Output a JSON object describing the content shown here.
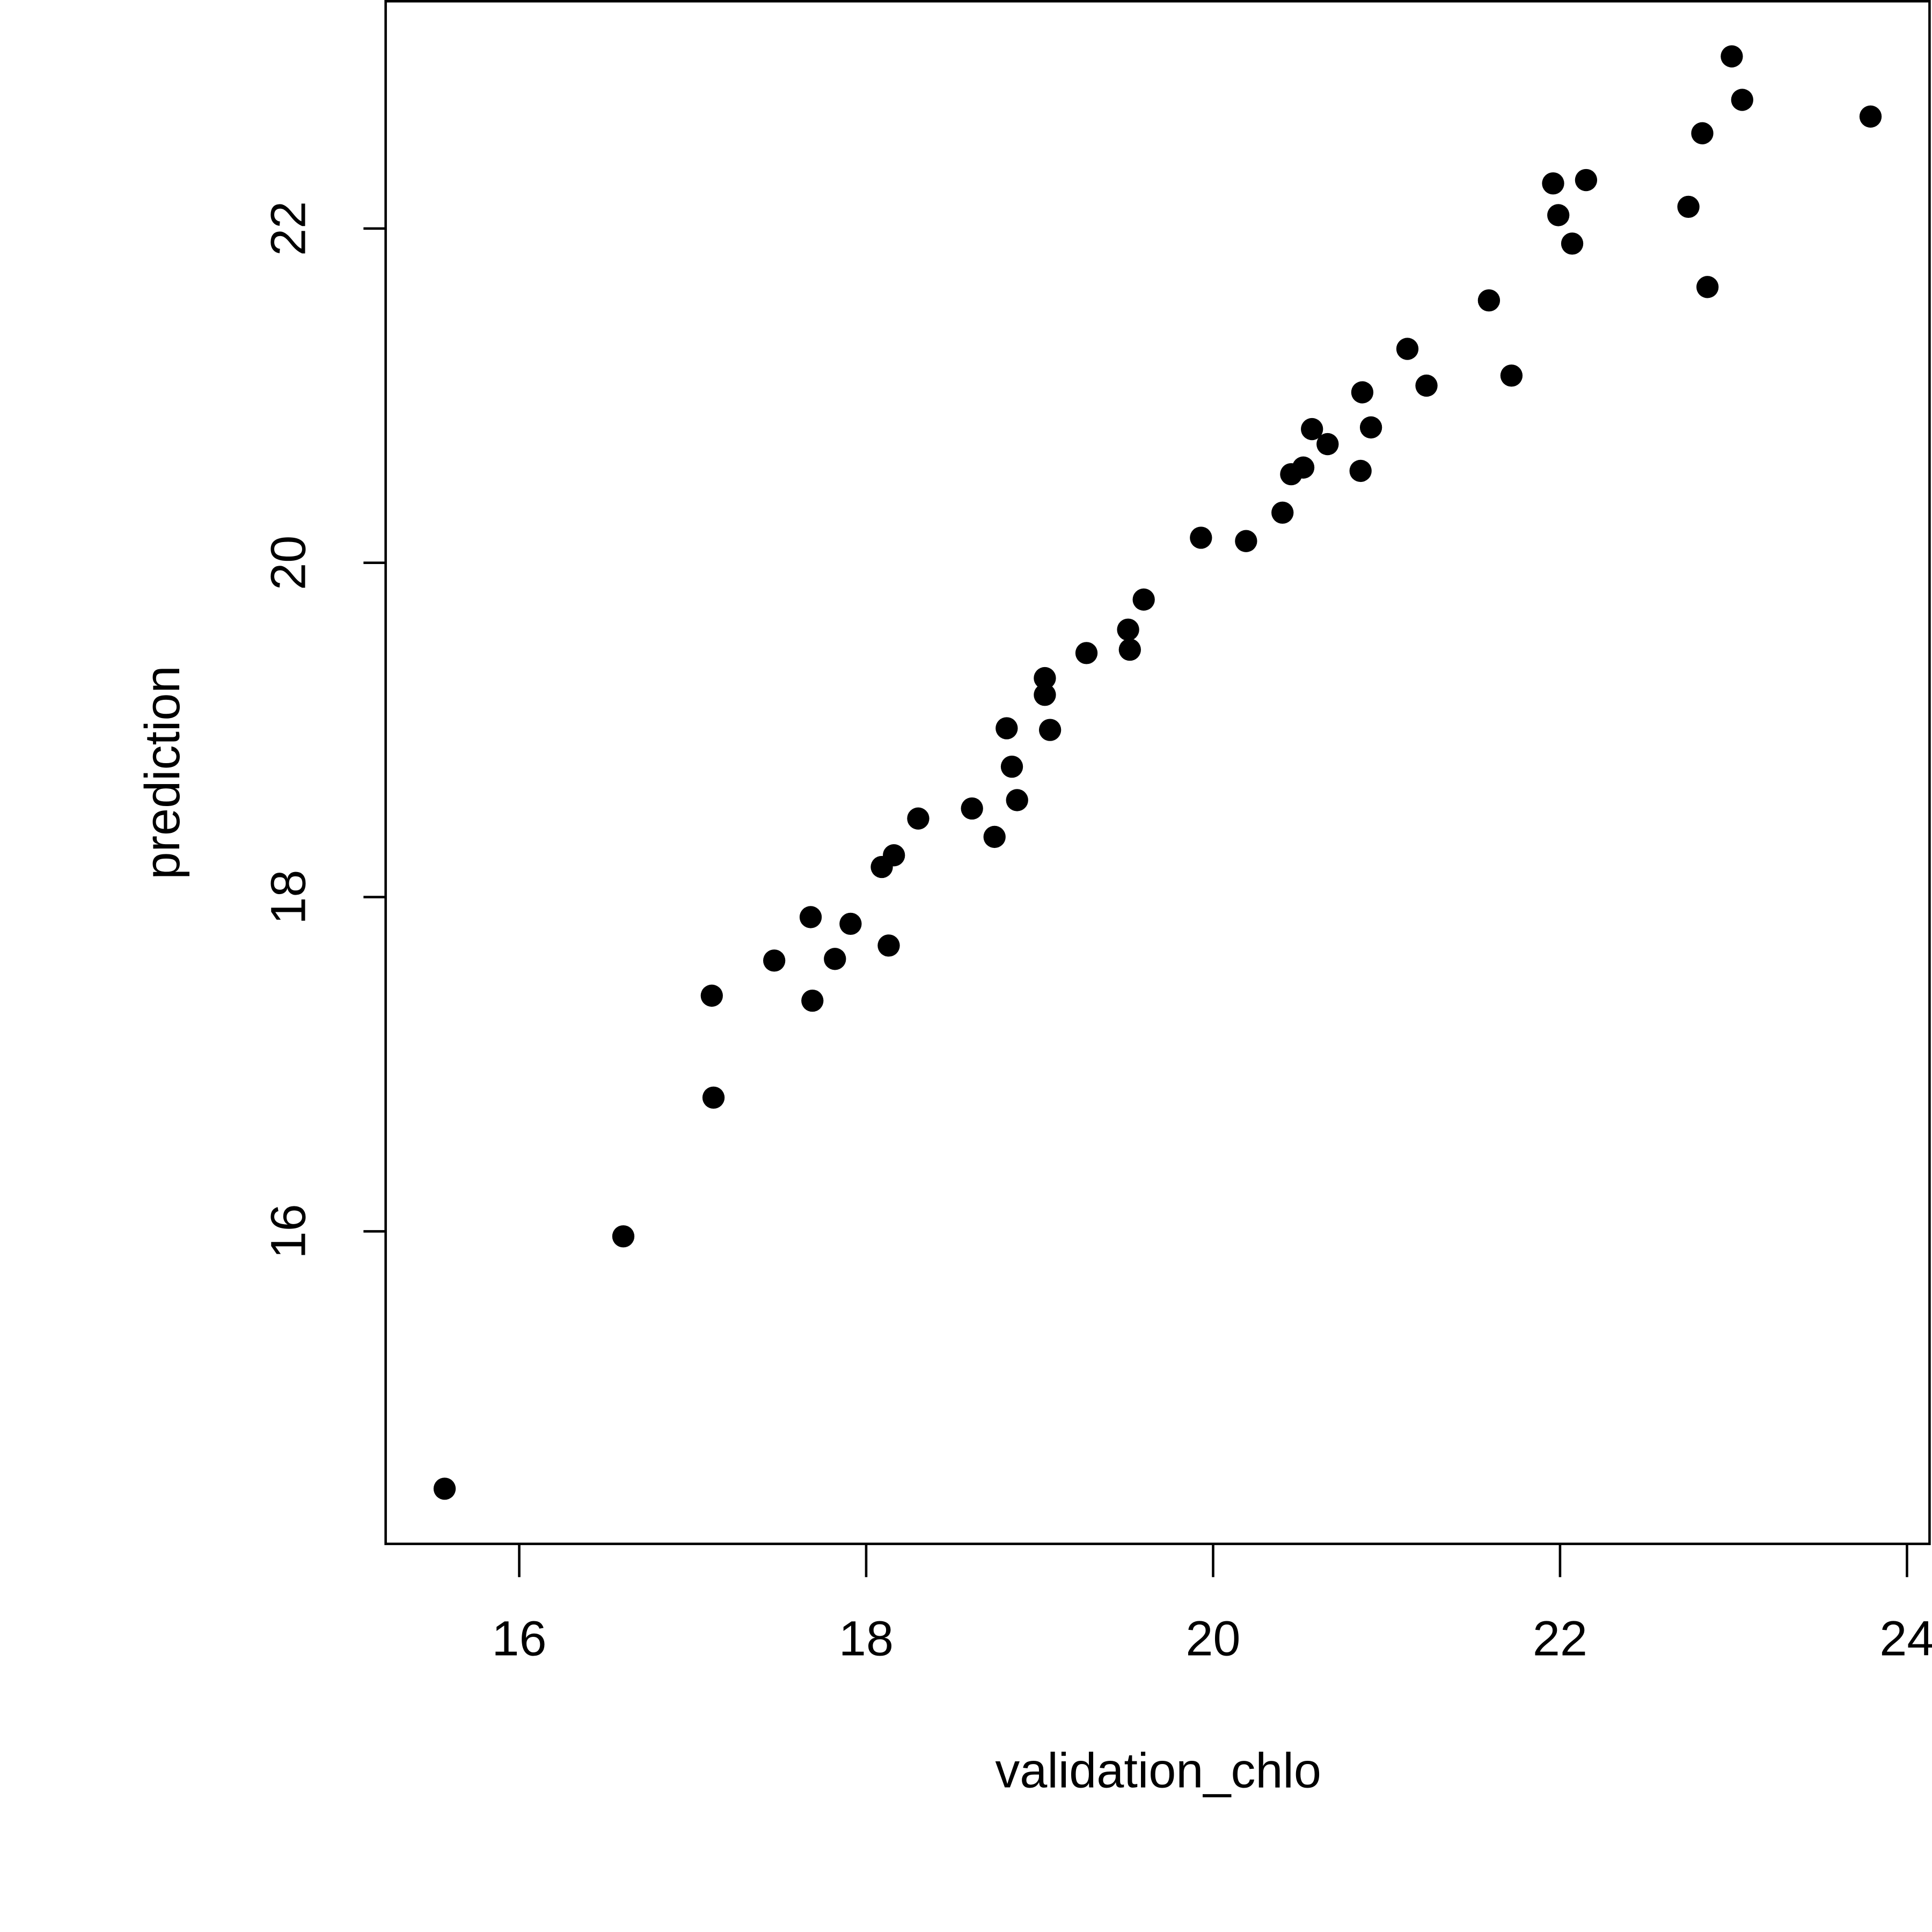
{
  "chart_data": {
    "type": "scatter",
    "xlabel": "validation_chlo",
    "ylabel": "prediction",
    "x": [
      15.57,
      16.6,
      17.11,
      17.12,
      17.47,
      17.68,
      17.69,
      17.82,
      17.91,
      18.09,
      18.16,
      18.13,
      18.3,
      18.61,
      18.74,
      18.81,
      18.84,
      18.87,
      19.03,
      19.03,
      19.06,
      19.27,
      19.51,
      19.52,
      19.6,
      19.93,
      20.19,
      20.4,
      20.45,
      20.52,
      20.57,
      20.66,
      20.85,
      20.86,
      20.91,
      21.12,
      21.23,
      21.59,
      21.72,
      21.96,
      21.99,
      22.07,
      22.15,
      22.74,
      22.82,
      22.85,
      22.99,
      23.05,
      23.79
    ],
    "y": [
      14.46,
      15.97,
      17.41,
      16.8,
      17.62,
      17.88,
      17.38,
      17.63,
      17.84,
      18.18,
      18.25,
      17.71,
      18.47,
      18.53,
      18.36,
      19.01,
      18.78,
      18.58,
      19.31,
      19.21,
      19.0,
      19.46,
      19.6,
      19.48,
      19.78,
      20.15,
      20.13,
      20.3,
      20.53,
      20.57,
      20.8,
      20.71,
      20.55,
      21.02,
      20.81,
      21.28,
      21.06,
      21.57,
      21.12,
      22.27,
      22.08,
      21.91,
      22.29,
      22.13,
      22.57,
      21.65,
      23.03,
      22.77,
      22.67
    ],
    "color": "#000000",
    "xlim": [
      15.23,
      24.13
    ],
    "ylim": [
      14.13,
      23.36
    ],
    "xticks": [
      16,
      18,
      20,
      22,
      24
    ],
    "yticks": [
      16,
      18,
      20,
      22
    ]
  }
}
